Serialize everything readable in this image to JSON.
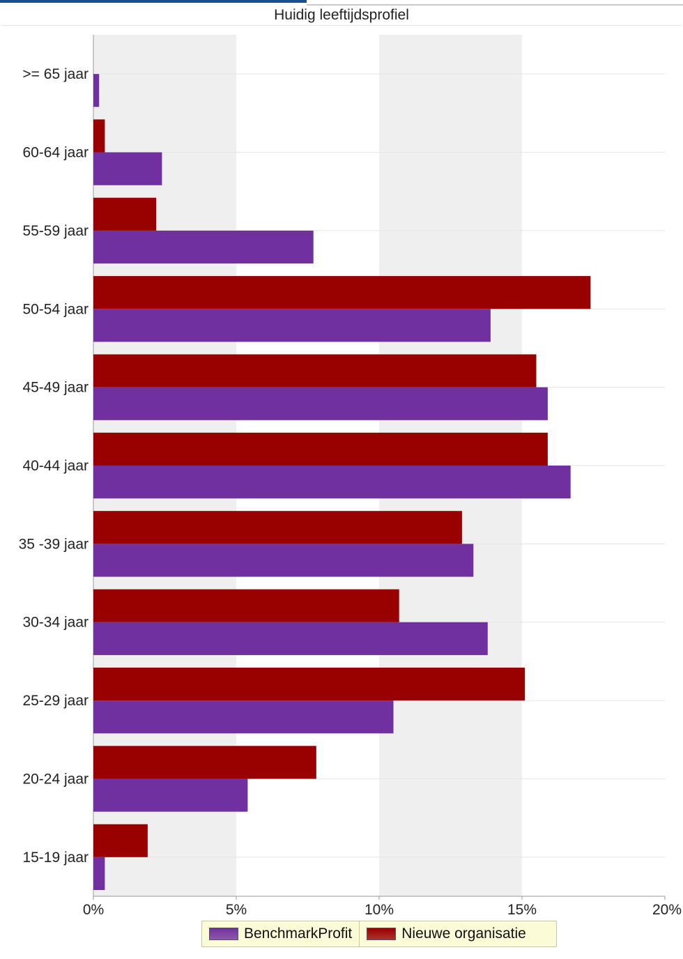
{
  "colors": {
    "benchmark": "#7030a0",
    "nieuwe": "#990000",
    "band": "#efefef",
    "legend_bg": "#fbfbd8"
  },
  "chart_data": {
    "type": "bar",
    "orientation": "horizontal",
    "title": "Huidig leeftijdsprofiel",
    "categories": [
      ">= 65 jaar",
      "60-64 jaar",
      "55-59 jaar",
      "50-54 jaar",
      "45-49 jaar",
      "40-44 jaar",
      "35 -39 jaar",
      "30-34 jaar",
      "25-29 jaar",
      "20-24 jaar",
      "15-19 jaar"
    ],
    "series": [
      {
        "name": "Nieuwe organisatie",
        "color": "#990000",
        "values": [
          0,
          0.4,
          2.2,
          17.4,
          15.5,
          15.9,
          12.9,
          10.7,
          15.1,
          7.8,
          1.9
        ]
      },
      {
        "name": "BenchmarkProfit",
        "color": "#7030a0",
        "values": [
          0.2,
          2.4,
          7.7,
          13.9,
          15.9,
          16.7,
          13.3,
          13.8,
          10.5,
          5.4,
          0.4
        ]
      }
    ],
    "xlim": [
      0,
      20
    ],
    "x_ticks": [
      "0%",
      "5%",
      "10%",
      "15%",
      "20%"
    ],
    "grid": true,
    "legend_position": "bottom"
  },
  "legend": [
    {
      "label": "BenchmarkProfit",
      "color": "#7030a0"
    },
    {
      "label": "Nieuwe organisatie",
      "color": "#990000"
    }
  ]
}
